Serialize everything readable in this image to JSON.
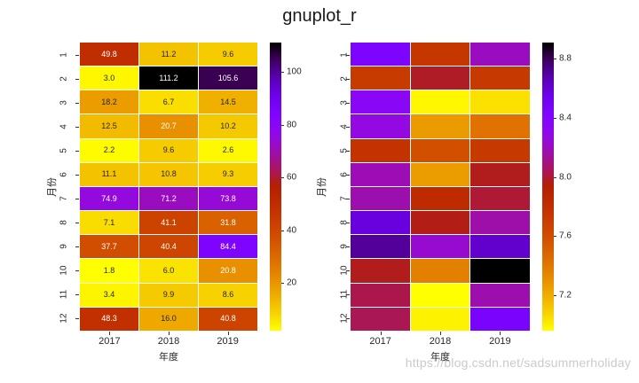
{
  "figure": {
    "title": "gnuplot_r",
    "watermark": "https://blog.csdn.net/sadsummerholiday",
    "background": "#ffffff",
    "text_color": "#262626",
    "annot_dark_color": "#262626",
    "annot_light_color": "#ffffff",
    "watermark_color": "#cbcbcb"
  },
  "chart_data": [
    {
      "type": "heatmap",
      "name": "heatmap-left",
      "colormap": "gnuplot_r",
      "xlabel": "年度",
      "ylabel": "月份",
      "x_ticks": [
        "2017",
        "2018",
        "2019"
      ],
      "y_ticks": [
        "1",
        "2",
        "3",
        "4",
        "5",
        "6",
        "7",
        "8",
        "9",
        "10",
        "11",
        "12"
      ],
      "annotated": true,
      "values": [
        [
          49.8,
          11.2,
          9.6
        ],
        [
          3.0,
          111.2,
          105.6
        ],
        [
          18.2,
          6.7,
          14.5
        ],
        [
          12.5,
          20.7,
          10.2
        ],
        [
          2.2,
          9.6,
          2.6
        ],
        [
          11.1,
          10.8,
          9.3
        ],
        [
          74.9,
          71.2,
          73.8
        ],
        [
          7.1,
          41.1,
          31.8
        ],
        [
          37.7,
          40.4,
          84.4
        ],
        [
          1.8,
          6.0,
          20.8
        ],
        [
          3.4,
          9.9,
          8.6
        ],
        [
          48.3,
          16.0,
          40.8
        ]
      ],
      "annot": [
        [
          "49.8",
          "11.2",
          "9.6"
        ],
        [
          "3.0",
          "111.2",
          "105.6"
        ],
        [
          "18.2",
          "6.7",
          "14.5"
        ],
        [
          "12.5",
          "20.7",
          "10.2"
        ],
        [
          "2.2",
          "9.6",
          "2.6"
        ],
        [
          "11.1",
          "10.8",
          "9.3"
        ],
        [
          "74.9",
          "71.2",
          "73.8"
        ],
        [
          "7.1",
          "41.1",
          "31.8"
        ],
        [
          "37.7",
          "40.4",
          "84.4"
        ],
        [
          "1.8",
          "6.0",
          "20.8"
        ],
        [
          "3.4",
          "9.9",
          "8.6"
        ],
        [
          "48.3",
          "16.0",
          "40.8"
        ]
      ],
      "vmin": 1.8,
      "vmax": 111.2,
      "colorbar": {
        "ticks": [
          20,
          40,
          60,
          80,
          100
        ],
        "tick_labels": [
          "20",
          "40",
          "60",
          "80",
          "100"
        ]
      }
    },
    {
      "type": "heatmap",
      "name": "heatmap-right",
      "colormap": "gnuplot_r",
      "xlabel": "年度",
      "ylabel": "月份",
      "x_ticks": [
        "2017",
        "2018",
        "2019"
      ],
      "y_ticks": [
        "1",
        "2",
        "3",
        "4",
        "5",
        "6",
        "7",
        "8",
        "9",
        "10",
        "11",
        "12"
      ],
      "annotated": false,
      "values_are_estimates": true,
      "values": [
        [
          8.44,
          7.74,
          8.2
        ],
        [
          7.72,
          7.98,
          7.73
        ],
        [
          8.34,
          6.98,
          7.04
        ],
        [
          8.27,
          7.26,
          7.42
        ],
        [
          7.77,
          7.59,
          7.73
        ],
        [
          8.18,
          7.25,
          7.97
        ],
        [
          8.17,
          7.83,
          8.0
        ],
        [
          8.58,
          7.96,
          8.16
        ],
        [
          8.71,
          8.23,
          8.62
        ],
        [
          7.97,
          7.36,
          8.91
        ],
        [
          8.03,
          6.96,
          8.17
        ],
        [
          8.04,
          6.99,
          8.46
        ]
      ],
      "vmin": 6.96,
      "vmax": 8.91,
      "colorbar": {
        "ticks": [
          7.2,
          7.6,
          8.0,
          8.4,
          8.8
        ],
        "tick_labels": [
          "7.2",
          "7.6",
          "8.0",
          "8.4",
          "8.8"
        ]
      }
    }
  ]
}
